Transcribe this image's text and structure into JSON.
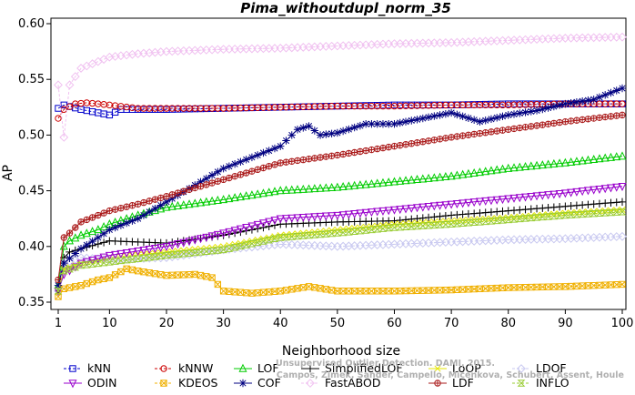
{
  "chart_data": {
    "type": "line",
    "title": "Pima_withoutdupl_norm_35",
    "xlabel": "Neighborhood size",
    "ylabel": "AP",
    "xlim": [
      1,
      100
    ],
    "ylim": [
      0.35,
      0.6
    ],
    "xticks": [
      1,
      10,
      20,
      30,
      40,
      50,
      60,
      70,
      80,
      90,
      100
    ],
    "yticks": [
      0.35,
      0.4,
      0.45,
      0.5,
      0.55,
      0.6
    ],
    "grid": false,
    "legend_position": "bottom",
    "watermark": [
      "Campos, Zimek, Sander, Campello, Micenkova, Schubert, Assent, Houle",
      "Unsupervised Outlier Detection. DAMI, 2015."
    ],
    "series": [
      {
        "name": "kNN",
        "color": "#0000cc",
        "marker": "square",
        "linestyle": "dashed",
        "points": [
          [
            1,
            0.524
          ],
          [
            2,
            0.527
          ],
          [
            5,
            0.523
          ],
          [
            10,
            0.518
          ],
          [
            12,
            0.523
          ],
          [
            20,
            0.523
          ],
          [
            30,
            0.524
          ],
          [
            40,
            0.525
          ],
          [
            50,
            0.526
          ],
          [
            60,
            0.527
          ],
          [
            70,
            0.527
          ],
          [
            80,
            0.528
          ],
          [
            90,
            0.528
          ],
          [
            100,
            0.528
          ]
        ]
      },
      {
        "name": "kNNW",
        "color": "#cc0000",
        "marker": "circle",
        "linestyle": "dashed",
        "points": [
          [
            1,
            0.515
          ],
          [
            2,
            0.523
          ],
          [
            4,
            0.528
          ],
          [
            6,
            0.529
          ],
          [
            10,
            0.527
          ],
          [
            15,
            0.524
          ],
          [
            20,
            0.524
          ],
          [
            30,
            0.524
          ],
          [
            40,
            0.525
          ],
          [
            50,
            0.526
          ],
          [
            60,
            0.526
          ],
          [
            70,
            0.527
          ],
          [
            80,
            0.527
          ],
          [
            90,
            0.528
          ],
          [
            100,
            0.528
          ]
        ]
      },
      {
        "name": "LOF",
        "color": "#00cc00",
        "marker": "triangle-up",
        "linestyle": "solid",
        "points": [
          [
            1,
            0.365
          ],
          [
            2,
            0.4
          ],
          [
            3,
            0.405
          ],
          [
            5,
            0.41
          ],
          [
            8,
            0.415
          ],
          [
            10,
            0.42
          ],
          [
            15,
            0.428
          ],
          [
            20,
            0.435
          ],
          [
            30,
            0.442
          ],
          [
            40,
            0.45
          ],
          [
            50,
            0.453
          ],
          [
            60,
            0.458
          ],
          [
            70,
            0.463
          ],
          [
            80,
            0.47
          ],
          [
            90,
            0.475
          ],
          [
            100,
            0.481
          ]
        ]
      },
      {
        "name": "SimplifiedLOF",
        "color": "#000000",
        "marker": "plus",
        "linestyle": "solid",
        "points": [
          [
            1,
            0.36
          ],
          [
            2,
            0.39
          ],
          [
            3,
            0.395
          ],
          [
            5,
            0.398
          ],
          [
            10,
            0.405
          ],
          [
            15,
            0.404
          ],
          [
            20,
            0.403
          ],
          [
            30,
            0.41
          ],
          [
            40,
            0.42
          ],
          [
            50,
            0.422
          ],
          [
            60,
            0.423
          ],
          [
            70,
            0.428
          ],
          [
            80,
            0.432
          ],
          [
            90,
            0.436
          ],
          [
            100,
            0.44
          ]
        ]
      },
      {
        "name": "LoOP",
        "color": "#e6e600",
        "marker": "x",
        "linestyle": "solid",
        "points": [
          [
            1,
            0.36
          ],
          [
            2,
            0.38
          ],
          [
            5,
            0.385
          ],
          [
            10,
            0.39
          ],
          [
            20,
            0.395
          ],
          [
            30,
            0.4
          ],
          [
            40,
            0.41
          ],
          [
            50,
            0.415
          ],
          [
            60,
            0.42
          ],
          [
            70,
            0.423
          ],
          [
            80,
            0.426
          ],
          [
            90,
            0.43
          ],
          [
            100,
            0.433
          ]
        ]
      },
      {
        "name": "LDOF",
        "color": "#c8c8f0",
        "marker": "diamond",
        "linestyle": "dashed",
        "points": [
          [
            1,
            0.36
          ],
          [
            2,
            0.385
          ],
          [
            5,
            0.39
          ],
          [
            10,
            0.388
          ],
          [
            20,
            0.39
          ],
          [
            30,
            0.397
          ],
          [
            40,
            0.402
          ],
          [
            50,
            0.4
          ],
          [
            60,
            0.402
          ],
          [
            70,
            0.404
          ],
          [
            80,
            0.406
          ],
          [
            90,
            0.407
          ],
          [
            100,
            0.409
          ]
        ]
      },
      {
        "name": "ODIN",
        "color": "#9900cc",
        "marker": "triangle-down",
        "linestyle": "solid",
        "points": [
          [
            1,
            0.36
          ],
          [
            2,
            0.375
          ],
          [
            5,
            0.385
          ],
          [
            10,
            0.392
          ],
          [
            20,
            0.4
          ],
          [
            30,
            0.412
          ],
          [
            40,
            0.425
          ],
          [
            50,
            0.428
          ],
          [
            60,
            0.433
          ],
          [
            70,
            0.438
          ],
          [
            80,
            0.443
          ],
          [
            90,
            0.448
          ],
          [
            100,
            0.454
          ]
        ]
      },
      {
        "name": "KDEOS",
        "color": "#f0b000",
        "marker": "square-x",
        "linestyle": "dashed",
        "points": [
          [
            1,
            0.355
          ],
          [
            2,
            0.362
          ],
          [
            5,
            0.365
          ],
          [
            8,
            0.37
          ],
          [
            10,
            0.372
          ],
          [
            13,
            0.38
          ],
          [
            15,
            0.378
          ],
          [
            20,
            0.374
          ],
          [
            25,
            0.375
          ],
          [
            28,
            0.372
          ],
          [
            30,
            0.36
          ],
          [
            35,
            0.358
          ],
          [
            40,
            0.36
          ],
          [
            45,
            0.364
          ],
          [
            50,
            0.36
          ],
          [
            60,
            0.36
          ],
          [
            70,
            0.361
          ],
          [
            80,
            0.363
          ],
          [
            90,
            0.364
          ],
          [
            100,
            0.366
          ]
        ]
      },
      {
        "name": "COF",
        "color": "#000080",
        "marker": "asterisk",
        "linestyle": "solid",
        "points": [
          [
            1,
            0.365
          ],
          [
            2,
            0.385
          ],
          [
            5,
            0.398
          ],
          [
            8,
            0.408
          ],
          [
            10,
            0.415
          ],
          [
            15,
            0.425
          ],
          [
            20,
            0.44
          ],
          [
            25,
            0.455
          ],
          [
            30,
            0.47
          ],
          [
            35,
            0.48
          ],
          [
            40,
            0.49
          ],
          [
            43,
            0.505
          ],
          [
            45,
            0.508
          ],
          [
            47,
            0.5
          ],
          [
            50,
            0.502
          ],
          [
            55,
            0.51
          ],
          [
            60,
            0.51
          ],
          [
            65,
            0.515
          ],
          [
            70,
            0.52
          ],
          [
            75,
            0.512
          ],
          [
            80,
            0.518
          ],
          [
            85,
            0.522
          ],
          [
            90,
            0.528
          ],
          [
            95,
            0.532
          ],
          [
            100,
            0.542
          ]
        ]
      },
      {
        "name": "FastABOD",
        "color": "#f0c0f0",
        "marker": "diamond",
        "linestyle": "dashed",
        "points": [
          [
            1,
            0.545
          ],
          [
            2,
            0.498
          ],
          [
            3,
            0.545
          ],
          [
            5,
            0.56
          ],
          [
            8,
            0.566
          ],
          [
            10,
            0.57
          ],
          [
            15,
            0.573
          ],
          [
            20,
            0.575
          ],
          [
            30,
            0.577
          ],
          [
            40,
            0.578
          ],
          [
            50,
            0.58
          ],
          [
            60,
            0.582
          ],
          [
            70,
            0.583
          ],
          [
            80,
            0.585
          ],
          [
            90,
            0.587
          ],
          [
            100,
            0.588
          ]
        ]
      },
      {
        "name": "LDF",
        "color": "#aa1a1a",
        "marker": "circle-plus",
        "linestyle": "solid",
        "points": [
          [
            1,
            0.37
          ],
          [
            2,
            0.408
          ],
          [
            3,
            0.412
          ],
          [
            5,
            0.422
          ],
          [
            8,
            0.428
          ],
          [
            10,
            0.432
          ],
          [
            15,
            0.438
          ],
          [
            20,
            0.445
          ],
          [
            30,
            0.46
          ],
          [
            40,
            0.475
          ],
          [
            50,
            0.482
          ],
          [
            60,
            0.49
          ],
          [
            70,
            0.498
          ],
          [
            80,
            0.505
          ],
          [
            90,
            0.512
          ],
          [
            100,
            0.518
          ]
        ]
      },
      {
        "name": "INFLO",
        "color": "#99cc33",
        "marker": "hourglass",
        "linestyle": "dashed",
        "points": [
          [
            1,
            0.36
          ],
          [
            2,
            0.378
          ],
          [
            5,
            0.383
          ],
          [
            10,
            0.386
          ],
          [
            20,
            0.392
          ],
          [
            30,
            0.397
          ],
          [
            40,
            0.408
          ],
          [
            50,
            0.412
          ],
          [
            60,
            0.417
          ],
          [
            70,
            0.42
          ],
          [
            80,
            0.424
          ],
          [
            90,
            0.428
          ],
          [
            100,
            0.431
          ]
        ]
      }
    ]
  }
}
